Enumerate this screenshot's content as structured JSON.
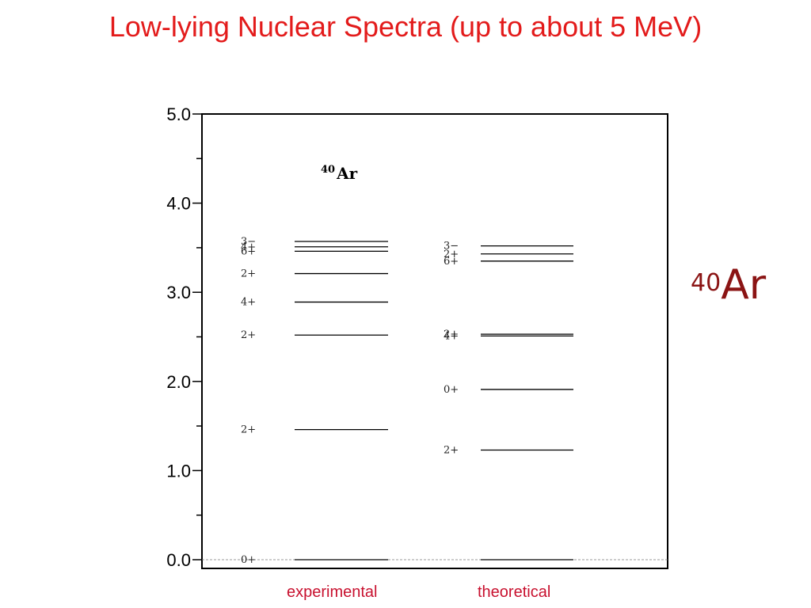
{
  "title": "Low-lying Nuclear Spectra (up to about 5  MeV)",
  "colors": {
    "title": "#e31b1b",
    "nucleus_label": "#8b1414",
    "column_labels": "#c8102e",
    "lines": "#000000"
  },
  "nucleus_label": {
    "mass": "40",
    "symbol": "Ar"
  },
  "column_labels": {
    "left": "experimental",
    "right": "theoretical"
  },
  "chart_data": {
    "type": "level-scheme",
    "title": "",
    "xlabel": "",
    "ylabel": "",
    "ylim": [
      0.0,
      5.0
    ],
    "yticks": [
      "0.0",
      "1.0",
      "2.0",
      "3.0",
      "4.0",
      "5.0"
    ],
    "minor_ticks": true,
    "annotation": {
      "mass": "40",
      "symbol": "Ar"
    },
    "zero_line_dashed": true,
    "series": [
      {
        "name": "experimental",
        "levels": [
          {
            "energy": 0.0,
            "label": "0+"
          },
          {
            "energy": 1.46,
            "label": "2+"
          },
          {
            "energy": 2.52,
            "label": "2+"
          },
          {
            "energy": 2.89,
            "label": "4+"
          },
          {
            "energy": 3.21,
            "label": "2+"
          },
          {
            "energy": 3.46,
            "label": "6+"
          },
          {
            "energy": 3.51,
            "label": "4+"
          },
          {
            "energy": 3.57,
            "label": "3−"
          }
        ]
      },
      {
        "name": "theoretical",
        "levels": [
          {
            "energy": 0.0,
            "label": ""
          },
          {
            "energy": 1.23,
            "label": "2+"
          },
          {
            "energy": 1.91,
            "label": "0+"
          },
          {
            "energy": 2.51,
            "label": "4+"
          },
          {
            "energy": 2.53,
            "label": "2+"
          },
          {
            "energy": 3.35,
            "label": "6+"
          },
          {
            "energy": 3.43,
            "label": "2+"
          },
          {
            "energy": 3.52,
            "label": "3−"
          }
        ]
      }
    ]
  }
}
